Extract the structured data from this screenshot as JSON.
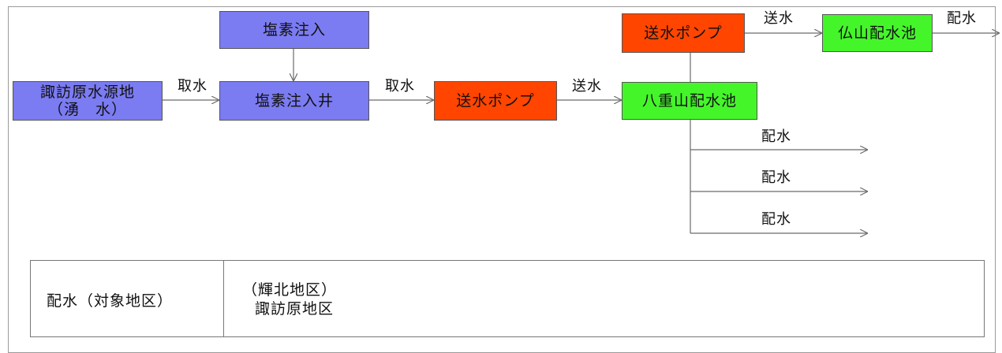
{
  "nodes": {
    "source": "諏訪原水源地\n（湧　水）",
    "chlorine_injection": "塩素注入",
    "chlorine_well": "塩素注入井",
    "pump_1": "送水ポンプ",
    "pump_2": "送水ポンプ",
    "yaeyama_reservoir": "八重山配水池",
    "hotokeyama_reservoir": "仏山配水池"
  },
  "edge_labels": {
    "intake_1": "取水",
    "intake_2": "取水",
    "transmission_1": "送水",
    "transmission_2": "送水",
    "distribution_top": "配水",
    "distribution_1": "配水",
    "distribution_2": "配水",
    "distribution_3": "配水"
  },
  "legend": {
    "label": "配水（対象地区）",
    "area_1": "（輝北地区）",
    "area_2": "諏訪原地区"
  },
  "colors": {
    "blue_node": "#7b7bf2",
    "pump_node": "#ff4500",
    "reservoir_node": "#44f52a",
    "line": "#6b6b6b"
  }
}
